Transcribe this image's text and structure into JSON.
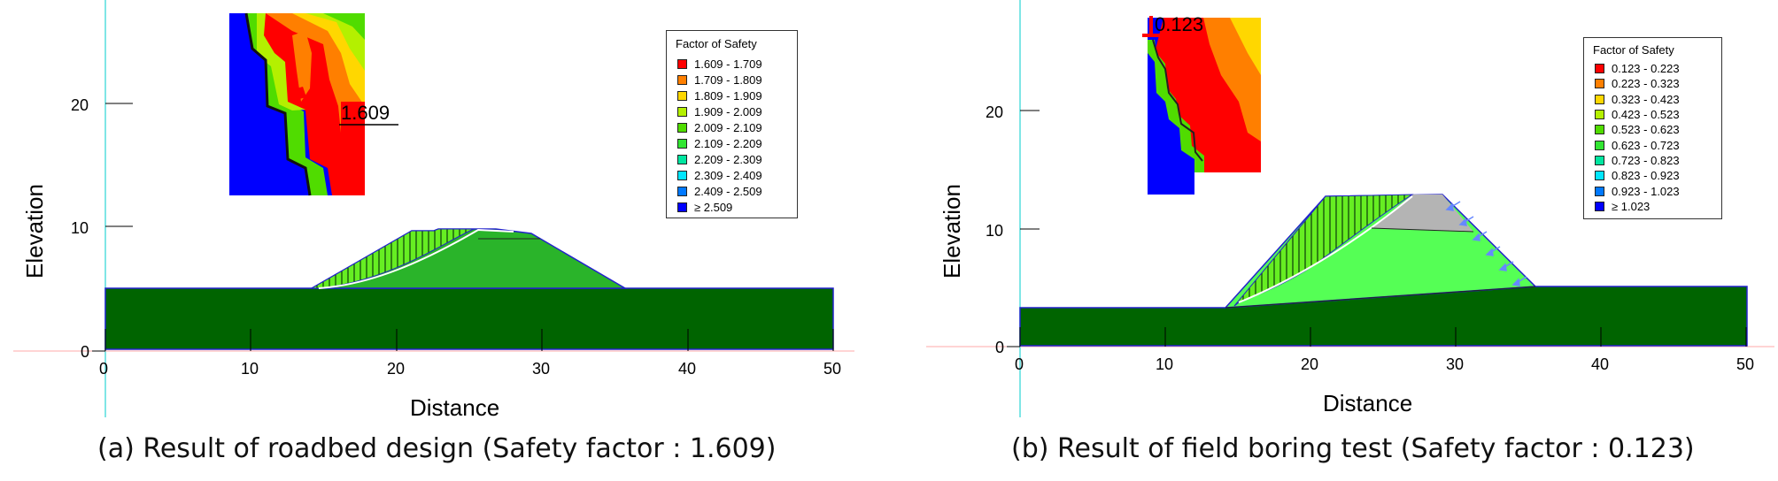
{
  "panels": [
    {
      "id": "a",
      "caption": "(a) Result of roadbed design (Safety factor : 1.609)",
      "x_label": "Distance",
      "y_label": "Elevation",
      "x_ticks": [
        "0",
        "10",
        "20",
        "30",
        "40",
        "50"
      ],
      "y_ticks": [
        "0",
        "10",
        "20"
      ],
      "fs_value": "1.609",
      "legend_title": "Factor of Safety",
      "legend": [
        {
          "label": "1.609 - 1.709",
          "color": "#ff0000"
        },
        {
          "label": "1.709 - 1.809",
          "color": "#ff7f00"
        },
        {
          "label": "1.809 - 1.909",
          "color": "#ffd700"
        },
        {
          "label": "1.909 - 2.009",
          "color": "#b4f000"
        },
        {
          "label": "2.009 - 2.109",
          "color": "#50dc00"
        },
        {
          "label": "2.109 - 2.209",
          "color": "#32e632"
        },
        {
          "label": "2.209 - 2.309",
          "color": "#00e6a0"
        },
        {
          "label": "2.309 - 2.409",
          "color": "#00e6ff"
        },
        {
          "label": "2.409 - 2.509",
          "color": "#0078ff"
        },
        {
          "label": "≥ 2.509",
          "color": "#0000ff"
        }
      ]
    },
    {
      "id": "b",
      "caption": "(b) Result of field boring test (Safety factor : 0.123)",
      "x_label": "Distance",
      "y_label": "Elevation",
      "x_ticks": [
        "0",
        "10",
        "20",
        "30",
        "40",
        "50"
      ],
      "y_ticks": [
        "0",
        "10",
        "20"
      ],
      "fs_value": "0.123",
      "legend_title": "Factor of Safety",
      "legend": [
        {
          "label": "0.123 - 0.223",
          "color": "#ff0000"
        },
        {
          "label": "0.223 - 0.323",
          "color": "#ff7f00"
        },
        {
          "label": "0.323 - 0.423",
          "color": "#ffd700"
        },
        {
          "label": "0.423 - 0.523",
          "color": "#b4f000"
        },
        {
          "label": "0.523 - 0.623",
          "color": "#50dc00"
        },
        {
          "label": "0.623 - 0.723",
          "color": "#32e632"
        },
        {
          "label": "0.723 - 0.823",
          "color": "#00e6a0"
        },
        {
          "label": "0.823 - 0.923",
          "color": "#00e6ff"
        },
        {
          "label": "0.923 - 1.023",
          "color": "#0078ff"
        },
        {
          "label": "≥ 1.023",
          "color": "#0000ff"
        }
      ]
    }
  ],
  "colors": {
    "foundation": "#006400",
    "embankment": "#2ab42a",
    "embankment_light": "#55ff55",
    "slip_mass": "#66ee22",
    "cap_grey": "#b4b4b4",
    "outline": "#2222cc",
    "load_arrow": "#6688ff"
  }
}
